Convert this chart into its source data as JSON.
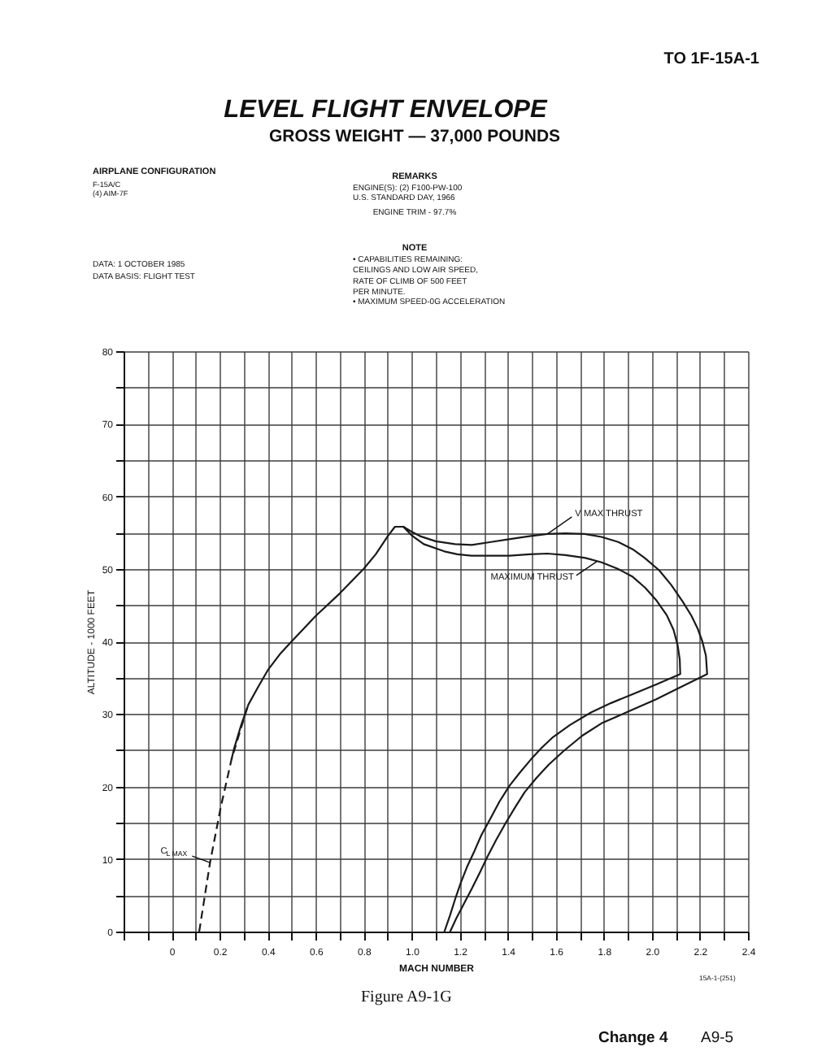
{
  "chart_data": {
    "type": "line",
    "title": "LEVEL FLIGHT ENVELOPE",
    "subtitle": "GROSS WEIGHT — 37,000 POUNDS",
    "xlabel": "MACH NUMBER",
    "ylabel": "ALTITUDE - 1000 FEET",
    "xlim": [
      -0.2,
      2.4
    ],
    "ylim": [
      0,
      80
    ],
    "xticks": [
      {
        "value": -0.2,
        "label": null
      },
      {
        "value": -0.1,
        "label": null
      },
      0,
      {
        "value": 0.1,
        "label": null
      },
      0.2,
      {
        "value": 0.3,
        "label": null
      },
      0.4,
      {
        "value": 0.5,
        "label": null
      },
      0.6,
      {
        "value": 0.7,
        "label": null
      },
      0.8,
      {
        "value": 0.9,
        "label": null
      },
      {
        "value": 1,
        "label": "1.0"
      },
      {
        "value": 1.1,
        "label": null
      },
      1.2,
      {
        "value": 1.3,
        "label": null
      },
      1.4,
      {
        "value": 1.5,
        "label": null
      },
      1.6,
      {
        "value": 1.7,
        "label": null
      },
      1.8,
      {
        "value": 1.9,
        "label": null
      },
      {
        "value": 2,
        "label": "2.0"
      },
      {
        "value": 2.1,
        "label": null
      },
      2.2,
      {
        "value": 2.3,
        "label": null
      },
      2.4
    ],
    "yticks": [
      0,
      {
        "value": 5,
        "label": null
      },
      10,
      {
        "value": 15,
        "label": null
      },
      20,
      {
        "value": 25,
        "label": null
      },
      30,
      {
        "value": 35,
        "label": null
      },
      40,
      {
        "value": 45,
        "label": null
      },
      50,
      {
        "value": 55,
        "label": null
      },
      60,
      {
        "value": 65,
        "label": null
      },
      70,
      {
        "value": 75,
        "label": null
      },
      80
    ],
    "grid": true,
    "series": [
      {
        "color": "#1a1a1a",
        "x": [
          0.25,
          0.26,
          0.29,
          0.32,
          0.36,
          0.4,
          0.45,
          0.5,
          0.6,
          0.7,
          0.8,
          0.85,
          0.9,
          0.93,
          0.965
        ],
        "values": [
          23.8,
          25.2,
          28.5,
          31.3,
          33.7,
          36.0,
          38.2,
          40.0,
          43.5,
          46.6,
          50.0,
          52.0,
          54.5,
          55.8,
          55.8
        ]
      },
      {
        "color": "#1a1a1a",
        "x": [
          0.965,
          1.0,
          1.035,
          1.1,
          1.18,
          1.25,
          1.33,
          1.41,
          1.49,
          1.565,
          1.64,
          1.72,
          1.79,
          1.86,
          1.92,
          1.97,
          2.03,
          2.08,
          2.13,
          2.165,
          2.19,
          2.21,
          2.225,
          2.23,
          2.12,
          2.016,
          1.9,
          1.79,
          1.71,
          1.633,
          1.57,
          1.52,
          1.47,
          1.43,
          1.39,
          1.351,
          1.315,
          1.283,
          1.25,
          1.215,
          1.185,
          1.16
        ],
        "values": [
          55.8,
          55.1,
          54.5,
          53.8,
          53.4,
          53.3,
          53.7,
          54.1,
          54.5,
          54.8,
          54.9,
          54.8,
          54.4,
          53.7,
          52.7,
          51.5,
          49.8,
          47.8,
          45.4,
          43.5,
          41.8,
          40.0,
          38.0,
          35.5,
          33.7,
          32.0,
          30.3,
          28.7,
          27.0,
          24.9,
          23.0,
          21.2,
          19.2,
          17.1,
          14.9,
          12.6,
          10.3,
          8.1,
          5.9,
          3.7,
          1.8,
          0
        ]
      },
      {
        "color": "#1a1a1a",
        "x": [
          0.965,
          1.0,
          1.05,
          1.136,
          1.19,
          1.249,
          1.33,
          1.407,
          1.49,
          1.565,
          1.64,
          1.723,
          1.79,
          1.858,
          1.92,
          1.972,
          2.02,
          2.062,
          2.09,
          2.107,
          2.116,
          2.118,
          2.02,
          1.926,
          1.83,
          1.746,
          1.66,
          1.588,
          1.54,
          1.498,
          1.45,
          1.407,
          1.365,
          1.328,
          1.29,
          1.261,
          1.23,
          1.204,
          1.18,
          1.159,
          1.136
        ],
        "values": [
          55.8,
          54.6,
          53.4,
          52.4,
          52.0,
          51.8,
          51.8,
          51.8,
          52.0,
          52.1,
          51.9,
          51.5,
          50.9,
          50.0,
          48.9,
          47.4,
          45.6,
          43.6,
          41.6,
          39.5,
          37.5,
          35.5,
          34.1,
          32.8,
          31.5,
          30.2,
          28.5,
          26.8,
          25.3,
          23.8,
          21.9,
          20.1,
          17.9,
          15.6,
          13.3,
          11.1,
          8.9,
          6.7,
          4.4,
          2.2,
          0
        ]
      },
      {
        "color": "#1a1a1a",
        "line_style": "dashed",
        "x": [
          0.115,
          0.16,
          0.205,
          0.25,
          0.32
        ],
        "values": [
          0,
          9.5,
          17.2,
          23.8,
          31.4
        ]
      }
    ],
    "annotations": [
      "TO 1F-15A-1",
      "AIRPLANE CONFIGURATION",
      "F-15A/C",
      "(4) AIM-7F",
      "DATA:  1 OCTOBER 1985",
      "DATA BASIS:  FLIGHT TEST",
      "REMARKS",
      "ENGINE(S):  (2) F100-PW-100",
      "U.S. STANDARD DAY, 1966",
      "ENGINE TRIM - 97.7%",
      "NOTE",
      "• CAPABILITIES REMAINING:\nCEILINGS AND LOW AIR SPEED,\nRATE OF CLIMB OF 500 FEET\nPER MINUTE.",
      "• MAXIMUM SPEED-0G ACCELERATION",
      {
        "text": "V MAX THRUST",
        "x": 1.565,
        "y": 54.8
      },
      {
        "text": "MAXIMUM THRUST",
        "x": 1.77,
        "y": 51.0
      },
      {
        "text": "C$_{L MAX}$",
        "x": 0.16,
        "y": 9.5
      },
      "15A-1-(251)",
      "Figure A9-1G",
      "Change 4",
      "A9-5"
    ]
  }
}
